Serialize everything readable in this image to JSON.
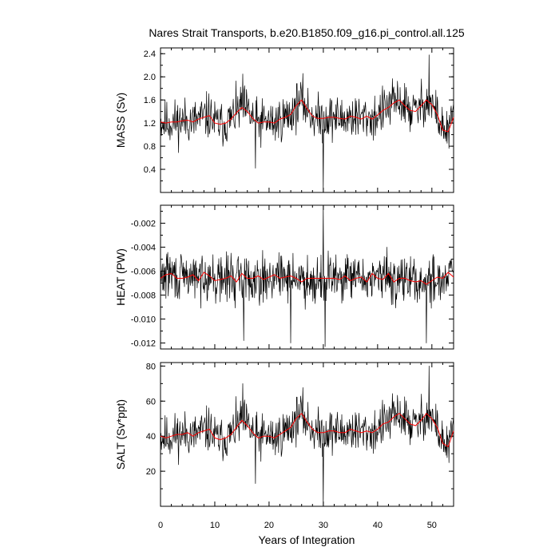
{
  "title": "Nares Strait Transports, b.e20.B1850.f09_g16.pi_control.all.125",
  "xlabel": "Years of Integration",
  "colors": {
    "raw": "#000000",
    "smooth": "#ff0000"
  },
  "chart_data": [
    {
      "type": "line",
      "ylabel": "MASS (Sv)",
      "xlim": [
        0,
        54
      ],
      "ylim": [
        0.0,
        2.5
      ],
      "xticks": [
        0,
        10,
        20,
        30,
        40,
        50
      ],
      "yticks": [
        "0.4",
        "0.8",
        "1.2",
        "1.6",
        "2.0",
        "2.4"
      ],
      "series": [
        {
          "style": "thin-black",
          "x_start": 0,
          "x_step": 0.0833,
          "base": 1.25,
          "amp": 0.28,
          "seed": 11,
          "spikes": [
            [
              15.2,
              2.05
            ],
            [
              30,
              0.02
            ],
            [
              49.5,
              2.38
            ],
            [
              17.5,
              0.42
            ]
          ]
        },
        {
          "style": "red-smooth",
          "x": [
            0,
            1,
            2,
            3,
            4,
            5,
            6,
            7,
            8,
            9,
            10,
            11,
            12,
            13,
            14,
            15,
            16,
            17,
            18,
            19,
            20,
            21,
            22,
            23,
            24,
            25,
            26,
            27,
            28,
            29,
            30,
            31,
            32,
            33,
            34,
            35,
            36,
            37,
            38,
            39,
            40,
            41,
            42,
            43,
            44,
            45,
            46,
            47,
            48,
            49,
            50,
            51,
            52,
            53,
            54
          ],
          "y": [
            1.22,
            1.2,
            1.22,
            1.22,
            1.24,
            1.25,
            1.22,
            1.27,
            1.3,
            1.33,
            1.2,
            1.18,
            1.2,
            1.27,
            1.38,
            1.47,
            1.4,
            1.28,
            1.2,
            1.22,
            1.22,
            1.2,
            1.27,
            1.3,
            1.35,
            1.5,
            1.6,
            1.45,
            1.32,
            1.28,
            1.28,
            1.3,
            1.3,
            1.28,
            1.27,
            1.32,
            1.3,
            1.27,
            1.32,
            1.27,
            1.34,
            1.42,
            1.47,
            1.55,
            1.6,
            1.5,
            1.42,
            1.4,
            1.5,
            1.6,
            1.52,
            1.35,
            1.08,
            1.05,
            1.3
          ]
        }
      ]
    },
    {
      "type": "line",
      "ylabel": "HEAT (PW)",
      "xlim": [
        0,
        54
      ],
      "ylim": [
        -0.0125,
        -0.0005
      ],
      "xticks": [
        0,
        10,
        20,
        30,
        40,
        50
      ],
      "yticks": [
        "-0.012",
        "-0.010",
        "-0.008",
        "-0.006",
        "-0.004",
        "-0.002"
      ],
      "series": [
        {
          "style": "thin-black",
          "x_start": 0,
          "x_step": 0.0833,
          "base": -0.0066,
          "amp": 0.0014,
          "seed": 29,
          "spikes": [
            [
              30,
              -0.0005
            ],
            [
              30.3,
              -0.0123
            ],
            [
              15.3,
              -0.0118
            ],
            [
              24,
              -0.012
            ],
            [
              49,
              -0.012
            ]
          ]
        },
        {
          "style": "red-smooth",
          "x": [
            0,
            1,
            2,
            3,
            4,
            5,
            6,
            7,
            8,
            9,
            10,
            11,
            12,
            13,
            14,
            15,
            16,
            17,
            18,
            19,
            20,
            21,
            22,
            23,
            24,
            25,
            26,
            27,
            28,
            29,
            30,
            31,
            32,
            33,
            34,
            35,
            36,
            37,
            38,
            39,
            40,
            41,
            42,
            43,
            44,
            45,
            46,
            47,
            48,
            49,
            50,
            51,
            52,
            53,
            54
          ],
          "y": [
            -0.0066,
            -0.0063,
            -0.0062,
            -0.0066,
            -0.0066,
            -0.0065,
            -0.0063,
            -0.0068,
            -0.0061,
            -0.0064,
            -0.0068,
            -0.0067,
            -0.0066,
            -0.0064,
            -0.0069,
            -0.0062,
            -0.0066,
            -0.0066,
            -0.0064,
            -0.0067,
            -0.0065,
            -0.0063,
            -0.0066,
            -0.0065,
            -0.0064,
            -0.0066,
            -0.0069,
            -0.0066,
            -0.0066,
            -0.0066,
            -0.0066,
            -0.0066,
            -0.0066,
            -0.0067,
            -0.0064,
            -0.0068,
            -0.0066,
            -0.0065,
            -0.0069,
            -0.0062,
            -0.0066,
            -0.0067,
            -0.0062,
            -0.0069,
            -0.0066,
            -0.0066,
            -0.0068,
            -0.0069,
            -0.0068,
            -0.0071,
            -0.0068,
            -0.0065,
            -0.0066,
            -0.0061,
            -0.0065
          ]
        }
      ]
    },
    {
      "type": "line",
      "ylabel": "SALT (Sv*ppt)",
      "xlim": [
        0,
        54
      ],
      "ylim": [
        0,
        82
      ],
      "xticks": [
        0,
        10,
        20,
        30,
        40,
        50
      ],
      "xticklabels": [
        "0",
        "10",
        "20",
        "30",
        "40",
        "50"
      ],
      "yticks": [
        "20",
        "40",
        "60",
        "80"
      ],
      "series": [
        {
          "style": "thin-black",
          "x_start": 0,
          "x_step": 0.0833,
          "base": 42,
          "amp": 9,
          "seed": 11,
          "spikes": [
            [
              15.2,
              70
            ],
            [
              30,
              0.5
            ],
            [
              49.5,
              80
            ],
            [
              17.5,
              13
            ]
          ]
        },
        {
          "style": "red-smooth",
          "x": [
            0,
            1,
            2,
            3,
            4,
            5,
            6,
            7,
            8,
            9,
            10,
            11,
            12,
            13,
            14,
            15,
            16,
            17,
            18,
            19,
            20,
            21,
            22,
            23,
            24,
            25,
            26,
            27,
            28,
            29,
            30,
            31,
            32,
            33,
            34,
            35,
            36,
            37,
            38,
            39,
            40,
            41,
            42,
            43,
            44,
            45,
            46,
            47,
            48,
            49,
            50,
            51,
            52,
            53,
            54
          ],
          "y": [
            40,
            39,
            40,
            41,
            41,
            42,
            40,
            42,
            43,
            44,
            39,
            38,
            39,
            41,
            45,
            49,
            46,
            42,
            39,
            40,
            40,
            39,
            41,
            43,
            45,
            50,
            53,
            48,
            44,
            42,
            42,
            43,
            43,
            42,
            42,
            44,
            43,
            42,
            43,
            42,
            44,
            47,
            48,
            51,
            53,
            50,
            47,
            46,
            49,
            53,
            50,
            45,
            36,
            34,
            43
          ]
        }
      ]
    }
  ]
}
